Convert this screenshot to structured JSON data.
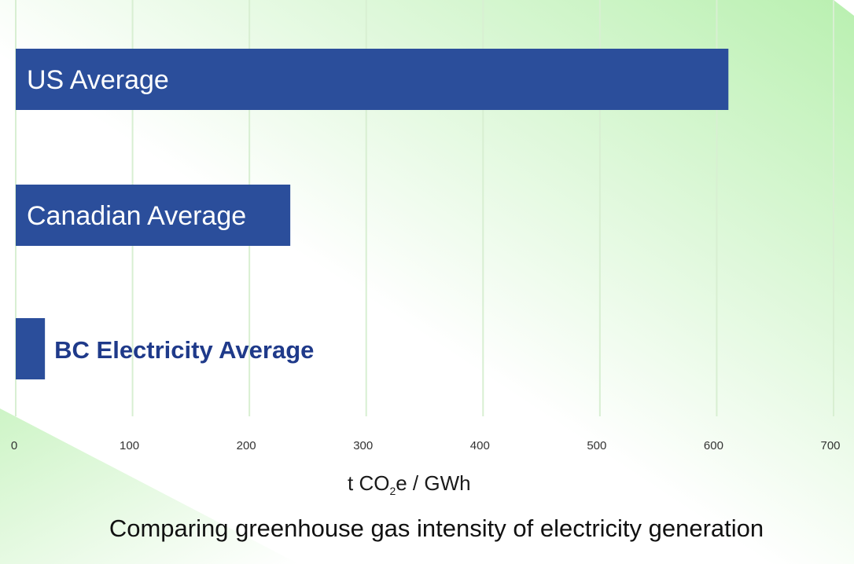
{
  "chart_data": {
    "type": "bar",
    "orientation": "horizontal",
    "categories": [
      "US Average",
      "Canadian Average",
      "BC Electricity Average"
    ],
    "values": [
      610,
      235,
      25
    ],
    "xlim": [
      0,
      700
    ],
    "xticks": [
      "0",
      "100",
      "200",
      "300",
      "400",
      "500",
      "600",
      "700"
    ],
    "xlabel_main": "t CO",
    "xlabel_sub": "2",
    "xlabel_tail": "e / GWh",
    "caption": "Comparing greenhouse gas intensity of electricity generation",
    "grid": "vertical",
    "legend": "none"
  },
  "colors": {
    "bar": "#2b4e9b",
    "bar_label_inside": "#ffffff",
    "bar_label_outside": "#1f3a8a",
    "background_gradient": "#b9f0b0",
    "grid": "#d8efd2"
  }
}
